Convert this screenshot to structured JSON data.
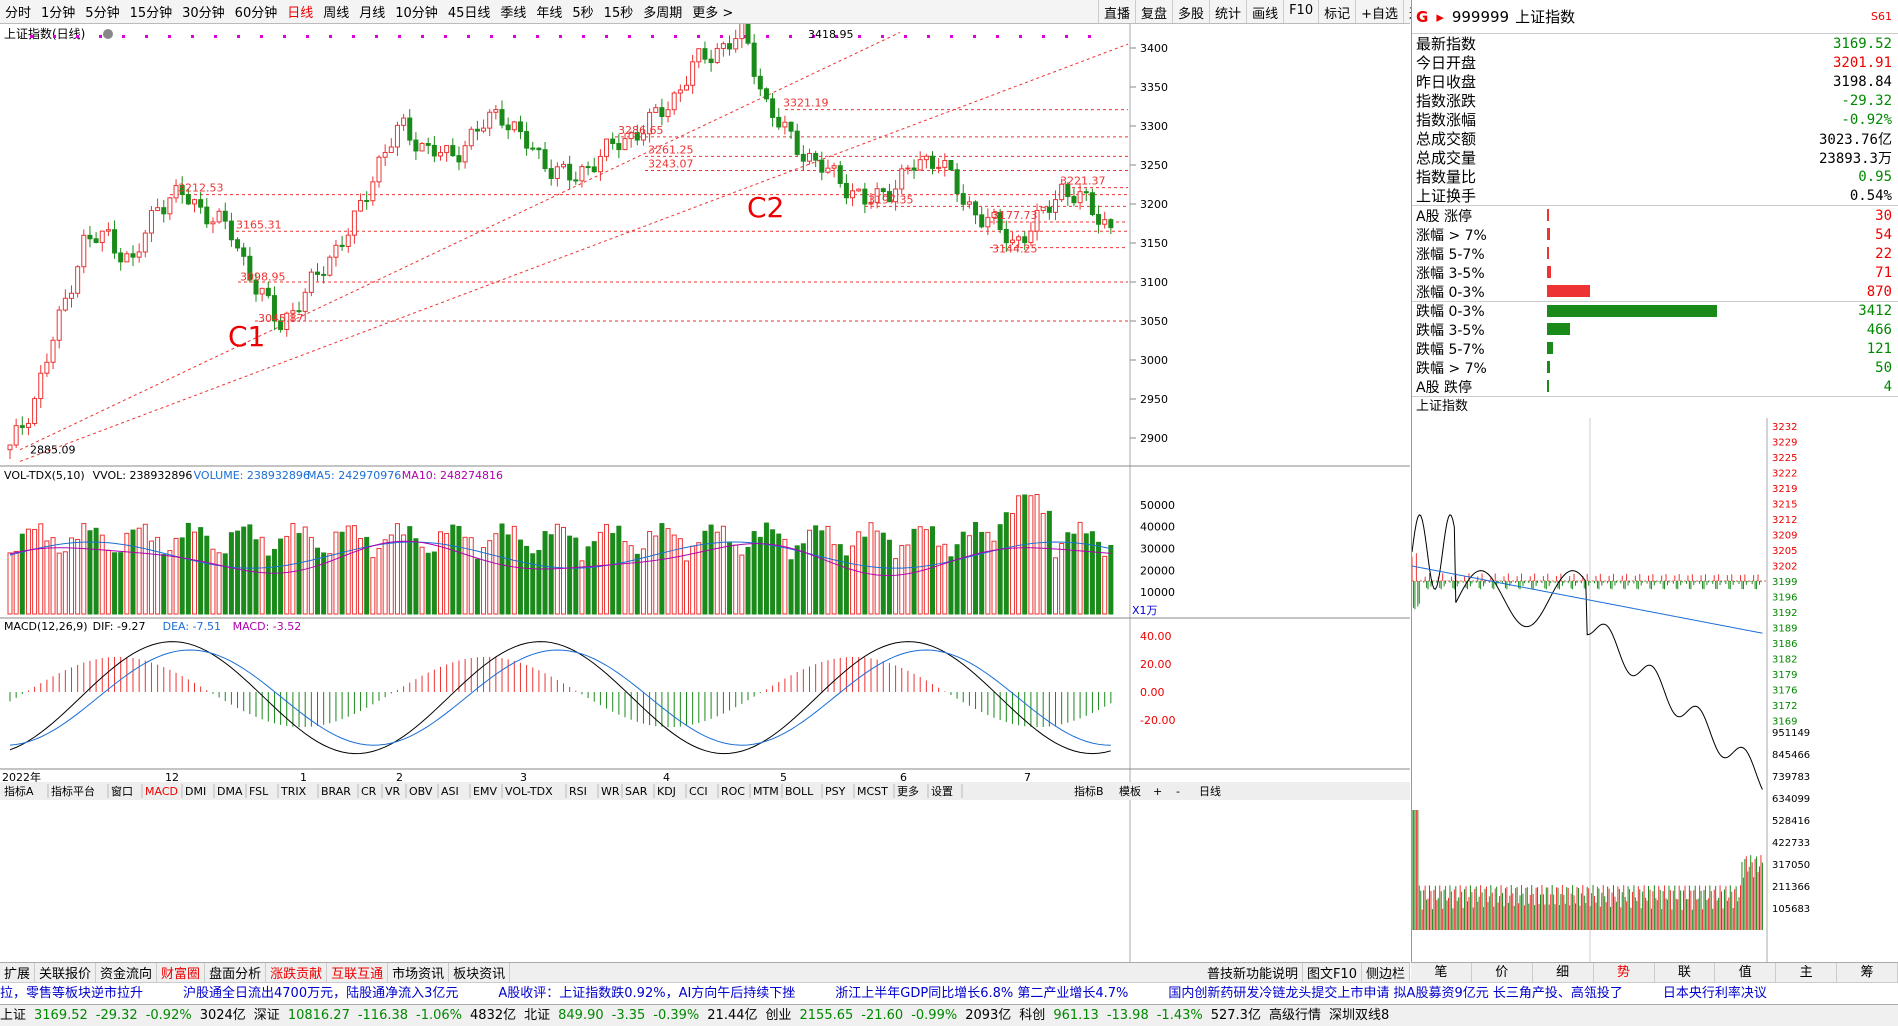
{
  "timeframes": [
    "分时",
    "1分钟",
    "5分钟",
    "15分钟",
    "30分钟",
    "60分钟",
    "日线",
    "周线",
    "月线",
    "10分钟",
    "45日线",
    "季线",
    "年线",
    "5秒",
    "15秒",
    "多周期",
    "更多 >"
  ],
  "timeframe_active": "日线",
  "toolbar_right": [
    "直播",
    "复盘",
    "多股",
    "统计",
    "画线",
    "F10",
    "标记",
    "+自选",
    "返回"
  ],
  "main_chart": {
    "title": "上证指数(日线)",
    "price_axis": [
      "3400",
      "3350",
      "3300",
      "3250",
      "3200",
      "3150",
      "3100",
      "3050",
      "3000",
      "2950",
      "2900"
    ],
    "labels": {
      "high": "3418.95",
      "low": "2885.09",
      "p3212": "3212.53",
      "p3165": "3165.31",
      "p3098": "3098.95",
      "p3045": "3045.87",
      "p3286": "3286.65",
      "p3261": "3261.25",
      "p3243": "3243.07",
      "p3321": "3321.19",
      "p3197": "3197.35",
      "p3221": "3221.37",
      "p3177": "3177.73",
      "p3144": "3144.25",
      "c1": "C1",
      "c2": "C2"
    }
  },
  "vol_panel": {
    "title": "VOL-TDX(5,10)",
    "vvol_label": "VVOL: 238932896",
    "volume_label": "VOLUME: 238932896",
    "ma5_label": "MA5: 242970976",
    "ma10_label": "MA10: 248274816",
    "axis": [
      "50000",
      "40000",
      "30000",
      "20000",
      "10000"
    ],
    "unit": "X1万"
  },
  "macd_panel": {
    "title": "MACD(12,26,9)",
    "dif_label": "DIF: -9.27",
    "dea_label": "DEA: -7.51",
    "macd_label": "MACD: -3.52",
    "axis": [
      "40.00",
      "20.00",
      "0.00",
      "-20.00"
    ]
  },
  "x_axis": [
    "2022年",
    "12",
    "1",
    "2",
    "3",
    "4",
    "5",
    "6",
    "7"
  ],
  "quote": {
    "code": "999999",
    "name": "上证指数",
    "badge": "S61",
    "rows": [
      {
        "label": "最新指数",
        "value": "3169.52",
        "color": "green"
      },
      {
        "label": "今日开盘",
        "value": "3201.91",
        "color": "red"
      },
      {
        "label": "昨日收盘",
        "value": "3198.84",
        "color": "blk"
      },
      {
        "label": "指数涨跌",
        "value": "-29.32",
        "color": "green"
      },
      {
        "label": "指数涨幅",
        "value": "-0.92%",
        "color": "green"
      },
      {
        "label": "总成交额",
        "value": "3023.76亿",
        "color": "blk"
      },
      {
        "label": "总成交量",
        "value": "23893.3万",
        "color": "blk"
      },
      {
        "label": "指数量比",
        "value": "0.95",
        "color": "green"
      },
      {
        "label": "上证换手",
        "value": "0.54%",
        "color": "blk"
      }
    ]
  },
  "breadth": [
    {
      "label": "A股 涨停",
      "value": "30",
      "kind": "up",
      "frac": 0.009
    },
    {
      "label": "涨幅 > 7%",
      "value": "54",
      "kind": "up",
      "frac": 0.016
    },
    {
      "label": "涨幅 5-7%",
      "value": "22",
      "kind": "up",
      "frac": 0.0065
    },
    {
      "label": "涨幅 3-5%",
      "value": "71",
      "kind": "up",
      "frac": 0.021
    },
    {
      "label": "涨幅 0-3%",
      "value": "870",
      "kind": "up",
      "frac": 0.255
    },
    {
      "label": "跌幅 0-3%",
      "value": "3412",
      "kind": "down",
      "frac": 1.0
    },
    {
      "label": "跌幅 3-5%",
      "value": "466",
      "kind": "down",
      "frac": 0.137
    },
    {
      "label": "跌幅 5-7%",
      "value": "121",
      "kind": "down",
      "frac": 0.035
    },
    {
      "label": "跌幅 > 7%",
      "value": "50",
      "kind": "down",
      "frac": 0.015
    },
    {
      "label": "A股 跌停",
      "value": "4",
      "kind": "down",
      "frac": 0.0012
    }
  ],
  "intraday": {
    "title": "上证指数",
    "price_axis": [
      "3232",
      "3229",
      "3225",
      "3222",
      "3219",
      "3215",
      "3212",
      "3209",
      "3205",
      "3202",
      "3199",
      "3196",
      "3192",
      "3189",
      "3186",
      "3182",
      "3179",
      "3176",
      "3172",
      "3169"
    ],
    "vol_axis": [
      "951149",
      "845466",
      "739783",
      "634099",
      "528416",
      "422733",
      "317050",
      "211366",
      "105683"
    ]
  },
  "bottom_tabs": [
    "指标A",
    "指标平台",
    "窗口",
    "MACD",
    "DMI",
    "DMA",
    "FSL",
    "TRIX",
    "BRAR",
    "CR",
    "VR",
    "OBV",
    "ASI",
    "EMV",
    "VOL-TDX",
    "RSI",
    "WR",
    "SAR",
    "KDJ",
    "CCI",
    "ROC",
    "MTM",
    "BOLL",
    "PSY",
    "MCST",
    "更多",
    "设置"
  ],
  "bottom_tabs_right": [
    "指标B",
    "模板",
    "+",
    "-",
    "日线"
  ],
  "row2_tabs": [
    "扩展",
    "关联报价",
    "资金流向",
    "财富圈",
    "盘面分析",
    "涨跌贡献",
    "互联互通",
    "市场资讯",
    "板块资讯"
  ],
  "row2_right": [
    "普技新功能说明",
    "图文F10",
    "侧边栏"
  ],
  "right_tabs": [
    "笔",
    "价",
    "细",
    "势",
    "联",
    "值",
    "主",
    "筹"
  ],
  "news": [
    "拉，零售等板块逆市拉升",
    "沪股通全日流出4700万元，陆股通净流入3亿元",
    "A股收评：上证指数跌0.92%，AI方向午后持续下挫",
    "浙江上半年GDP同比增长6.8% 第二产业增长4.7%",
    "国内创新药研发冷链龙头提交上市申请 拟A股募资9亿元 长三角产投、高瓴投了",
    "日本央行利率决议"
  ],
  "status": [
    {
      "t": "上证",
      "c": "blk"
    },
    {
      "t": "3169.52",
      "c": "green"
    },
    {
      "t": "-29.32",
      "c": "green"
    },
    {
      "t": "-0.92%",
      "c": "green"
    },
    {
      "t": "3024亿",
      "c": "blk"
    },
    {
      "t": "深证",
      "c": "blk"
    },
    {
      "t": "10816.27",
      "c": "green"
    },
    {
      "t": "-116.38",
      "c": "green"
    },
    {
      "t": "-1.06%",
      "c": "green"
    },
    {
      "t": "4832亿",
      "c": "blk"
    },
    {
      "t": "北证",
      "c": "blk"
    },
    {
      "t": "849.90",
      "c": "green"
    },
    {
      "t": "-3.35",
      "c": "green"
    },
    {
      "t": "-0.39%",
      "c": "green"
    },
    {
      "t": "21.44亿",
      "c": "blk"
    },
    {
      "t": "创业",
      "c": "blk"
    },
    {
      "t": "2155.65",
      "c": "green"
    },
    {
      "t": "-21.60",
      "c": "green"
    },
    {
      "t": "-0.99%",
      "c": "green"
    },
    {
      "t": "2093亿",
      "c": "blk"
    },
    {
      "t": "科创",
      "c": "blk"
    },
    {
      "t": "961.13",
      "c": "green"
    },
    {
      "t": "-13.98",
      "c": "green"
    },
    {
      "t": "-1.43%",
      "c": "green"
    },
    {
      "t": "527.3亿",
      "c": "blk"
    },
    {
      "t": "高级行情",
      "c": "blk"
    },
    {
      "t": "深圳双线8",
      "c": "blk"
    }
  ],
  "colors": {
    "up": "#e33",
    "down": "#1a8a1a",
    "line_dif": "#000",
    "line_dea": "#1a6ed6",
    "ma10": "#b000b0"
  },
  "chart_data": {
    "type": "candlestick",
    "price_axis": [
      2900,
      3400
    ],
    "candles_approx": [
      2885,
      2950,
      3050,
      3150,
      3160,
      3120,
      3200,
      3212,
      3190,
      3165,
      3098,
      3045,
      3080,
      3130,
      3170,
      3250,
      3300,
      3270,
      3260,
      3290,
      3320,
      3280,
      3250,
      3230,
      3260,
      3280,
      3300,
      3330,
      3380,
      3400,
      3418,
      3321,
      3280,
      3250,
      3230,
      3200,
      3220,
      3250,
      3260,
      3200,
      3180,
      3150,
      3177,
      3221,
      3200,
      3169
    ]
  }
}
